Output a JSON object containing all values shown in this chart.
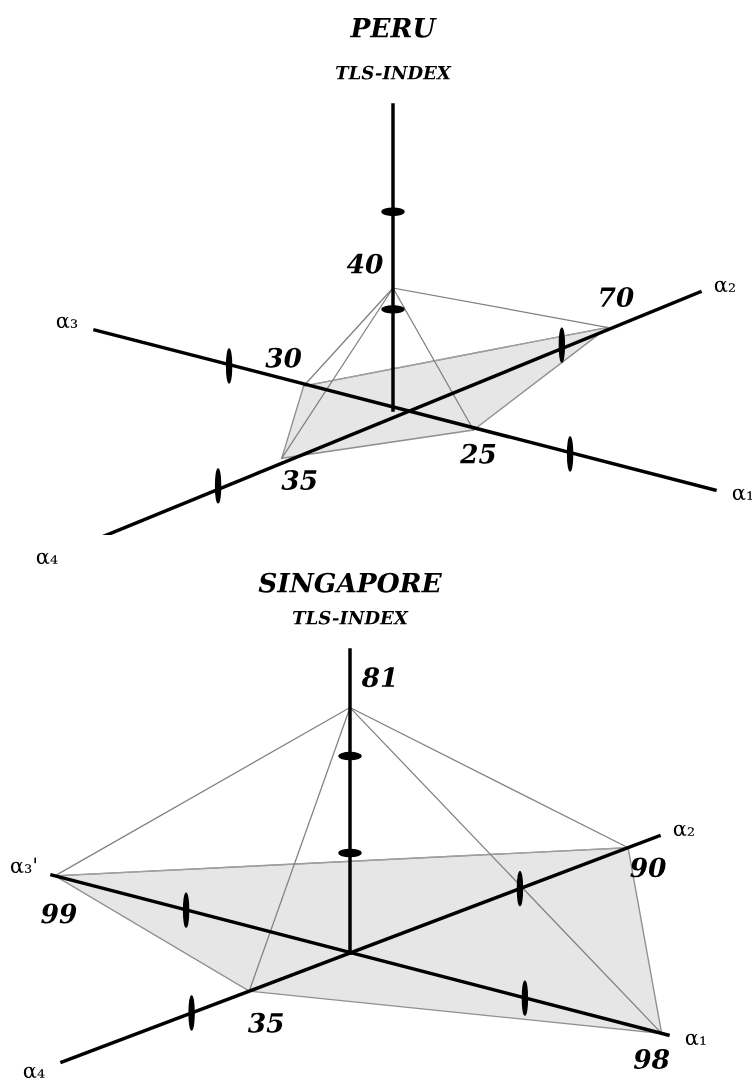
{
  "chart_data": [
    {
      "type": "other",
      "title": "PERU",
      "categories": [
        "TLS-INDEX",
        "α₁",
        "α₂",
        "α₃",
        "α₄"
      ],
      "values": [
        40,
        25,
        70,
        30,
        35
      ],
      "data_labels": true,
      "color": "#e6e6e6"
    },
    {
      "type": "other",
      "title": "SINGAPORE",
      "categories": [
        "TLS-INDEX",
        "α₁",
        "α₂",
        "α₃'",
        "α₄"
      ],
      "values": [
        81,
        98,
        90,
        99,
        35
      ],
      "data_labels": true,
      "color": "#e6e6e6"
    }
  ]
}
